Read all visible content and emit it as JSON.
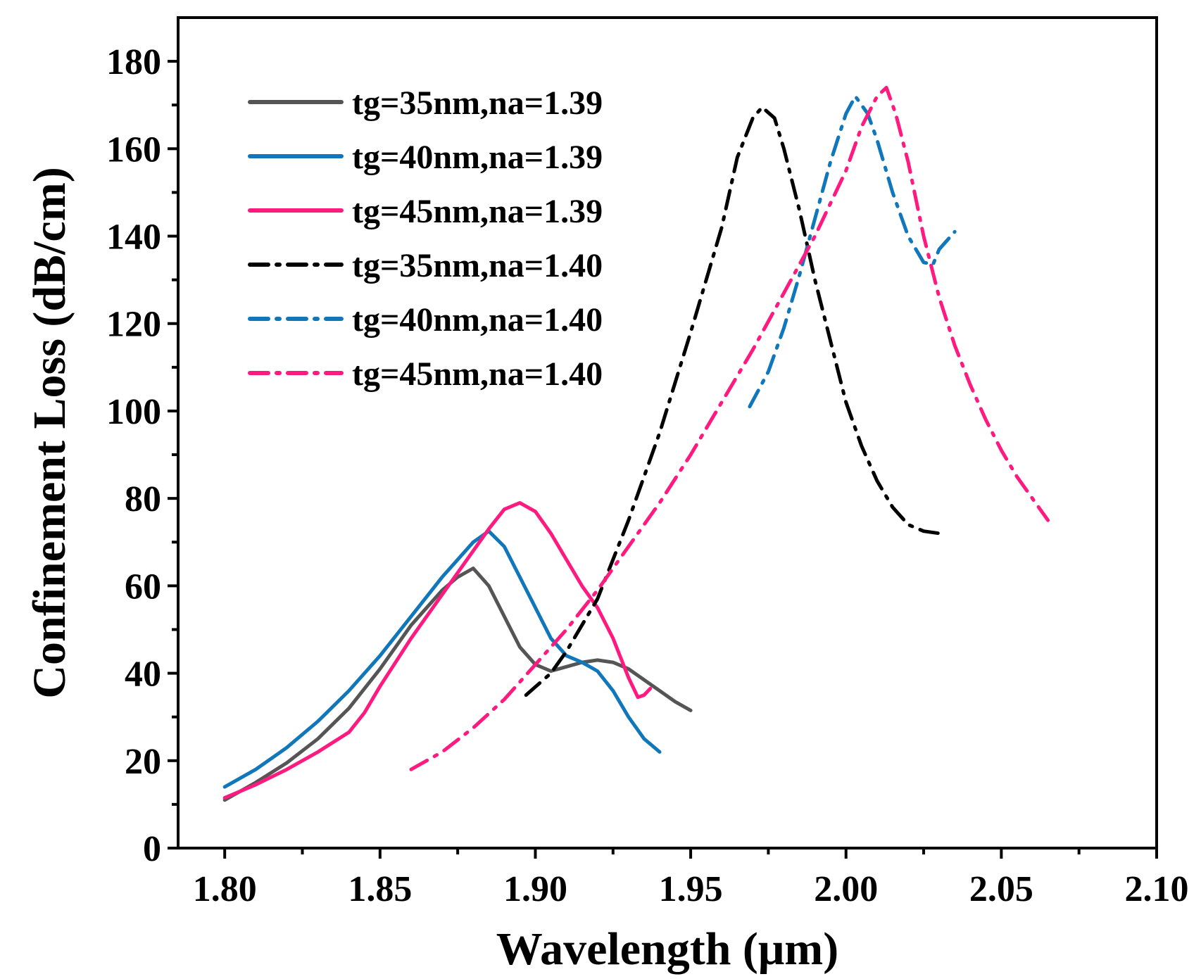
{
  "chart_data": {
    "type": "line",
    "title": "",
    "xlabel": "Wavelength (μm)",
    "ylabel": "Confinement Loss (dB/cm)",
    "xlim": [
      1.785,
      2.1
    ],
    "ylim": [
      0,
      190
    ],
    "x_ticks": [
      "1.80",
      "1.85",
      "1.90",
      "1.95",
      "2.00",
      "2.05",
      "2.10"
    ],
    "y_ticks": [
      "0",
      "20",
      "40",
      "60",
      "80",
      "100",
      "120",
      "140",
      "160",
      "180"
    ],
    "grid": false,
    "legend_position": "top-left",
    "series": [
      {
        "name": "tg=35nm,na=1.39",
        "color": "#555555",
        "style": "solid",
        "points": [
          [
            1.8,
            11
          ],
          [
            1.81,
            15
          ],
          [
            1.82,
            19.5
          ],
          [
            1.83,
            25
          ],
          [
            1.84,
            32
          ],
          [
            1.85,
            41
          ],
          [
            1.86,
            51
          ],
          [
            1.87,
            59
          ],
          [
            1.875,
            62
          ],
          [
            1.88,
            64
          ],
          [
            1.885,
            60
          ],
          [
            1.89,
            53
          ],
          [
            1.895,
            46
          ],
          [
            1.9,
            42
          ],
          [
            1.905,
            40.5
          ],
          [
            1.91,
            41.5
          ],
          [
            1.915,
            42.5
          ],
          [
            1.92,
            43
          ],
          [
            1.925,
            42.5
          ],
          [
            1.93,
            41
          ],
          [
            1.935,
            38.5
          ],
          [
            1.94,
            36
          ],
          [
            1.945,
            33.5
          ],
          [
            1.95,
            31.5
          ]
        ]
      },
      {
        "name": "tg=40nm,na=1.39",
        "color": "#1177bb",
        "style": "solid",
        "points": [
          [
            1.8,
            14
          ],
          [
            1.81,
            18
          ],
          [
            1.82,
            23
          ],
          [
            1.83,
            29
          ],
          [
            1.84,
            36
          ],
          [
            1.85,
            44
          ],
          [
            1.86,
            53
          ],
          [
            1.87,
            62
          ],
          [
            1.88,
            70
          ],
          [
            1.885,
            72.5
          ],
          [
            1.89,
            69
          ],
          [
            1.895,
            62
          ],
          [
            1.9,
            55
          ],
          [
            1.905,
            48
          ],
          [
            1.91,
            44
          ],
          [
            1.915,
            42.5
          ],
          [
            1.92,
            40.5
          ],
          [
            1.925,
            36
          ],
          [
            1.93,
            30
          ],
          [
            1.935,
            25
          ],
          [
            1.94,
            22
          ]
        ]
      },
      {
        "name": "tg=45nm,na=1.39",
        "color": "#ff1a80",
        "style": "solid",
        "points": [
          [
            1.8,
            11.5
          ],
          [
            1.81,
            14.5
          ],
          [
            1.82,
            18
          ],
          [
            1.83,
            22
          ],
          [
            1.84,
            26.5
          ],
          [
            1.845,
            31
          ],
          [
            1.85,
            37
          ],
          [
            1.86,
            48
          ],
          [
            1.87,
            58
          ],
          [
            1.88,
            68
          ],
          [
            1.885,
            73
          ],
          [
            1.89,
            77.5
          ],
          [
            1.895,
            79
          ],
          [
            1.9,
            77
          ],
          [
            1.905,
            72
          ],
          [
            1.91,
            66
          ],
          [
            1.915,
            60
          ],
          [
            1.92,
            55
          ],
          [
            1.925,
            48
          ],
          [
            1.93,
            39
          ],
          [
            1.933,
            34.5
          ],
          [
            1.935,
            35
          ],
          [
            1.937,
            36.5
          ]
        ]
      },
      {
        "name": "tg=35nm,na=1.40",
        "color": "#000000",
        "style": "dashdot",
        "points": [
          [
            1.897,
            35
          ],
          [
            1.905,
            40
          ],
          [
            1.91,
            45
          ],
          [
            1.92,
            57
          ],
          [
            1.93,
            75
          ],
          [
            1.94,
            95
          ],
          [
            1.95,
            118
          ],
          [
            1.96,
            142
          ],
          [
            1.965,
            158
          ],
          [
            1.97,
            167
          ],
          [
            1.973,
            169.5
          ],
          [
            1.977,
            167
          ],
          [
            1.98,
            160
          ],
          [
            1.985,
            146
          ],
          [
            1.99,
            130
          ],
          [
            1.995,
            116
          ],
          [
            2.0,
            102
          ],
          [
            2.005,
            92
          ],
          [
            2.01,
            84
          ],
          [
            2.015,
            78
          ],
          [
            2.02,
            74
          ],
          [
            2.025,
            72.5
          ],
          [
            2.03,
            72
          ]
        ]
      },
      {
        "name": "tg=40nm,na=1.40",
        "color": "#1177bb",
        "style": "dashdot",
        "points": [
          [
            1.969,
            101
          ],
          [
            1.975,
            109
          ],
          [
            1.98,
            119
          ],
          [
            1.985,
            131
          ],
          [
            1.99,
            144
          ],
          [
            1.995,
            157
          ],
          [
            2.0,
            168
          ],
          [
            2.003,
            172
          ],
          [
            2.007,
            168
          ],
          [
            2.01,
            162
          ],
          [
            2.015,
            150
          ],
          [
            2.02,
            140
          ],
          [
            2.025,
            134
          ],
          [
            2.028,
            133.5
          ],
          [
            2.03,
            137
          ],
          [
            2.035,
            141
          ]
        ]
      },
      {
        "name": "tg=45nm,na=1.40",
        "color": "#ff1a80",
        "style": "dashdot",
        "points": [
          [
            1.86,
            18
          ],
          [
            1.87,
            22
          ],
          [
            1.88,
            27.5
          ],
          [
            1.89,
            34
          ],
          [
            1.9,
            42
          ],
          [
            1.91,
            50
          ],
          [
            1.92,
            59
          ],
          [
            1.93,
            69
          ],
          [
            1.94,
            79
          ],
          [
            1.95,
            90
          ],
          [
            1.96,
            102
          ],
          [
            1.97,
            114
          ],
          [
            1.98,
            127
          ],
          [
            1.99,
            140
          ],
          [
            2.0,
            155
          ],
          [
            2.005,
            165
          ],
          [
            2.01,
            172
          ],
          [
            2.013,
            174
          ],
          [
            2.016,
            168
          ],
          [
            2.02,
            157
          ],
          [
            2.025,
            140
          ],
          [
            2.03,
            126
          ],
          [
            2.035,
            115
          ],
          [
            2.04,
            106
          ],
          [
            2.045,
            98
          ],
          [
            2.05,
            91
          ],
          [
            2.055,
            85
          ],
          [
            2.06,
            80
          ],
          [
            2.065,
            75
          ]
        ]
      }
    ]
  }
}
